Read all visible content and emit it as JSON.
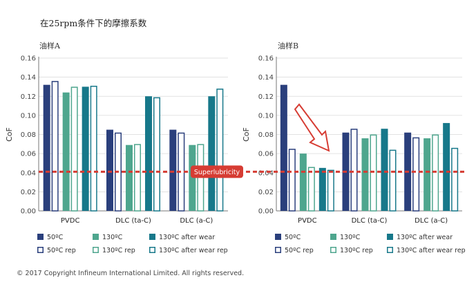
{
  "figure": {
    "title": "在25rpm条件下的摩擦系数",
    "copyright": "© 2017 Copyright Infineum International Limited. All rights reserved.",
    "superlubricity_label": "Superlubricity",
    "superlubricity_level": 0.041
  },
  "colors": {
    "50C": "#2a3f7c",
    "130C": "#4ea68e",
    "130C_after_wear": "#17788a",
    "superlubricity_line": "#d63c33",
    "arrow": "#d63c33"
  },
  "chart_data": [
    {
      "type": "bar",
      "title": "油样A",
      "ylabel": "CoF",
      "ylim": [
        0,
        0.16
      ],
      "yticks": [
        "0.00",
        "0.02",
        "0.04",
        "0.06",
        "0.08",
        "0.10",
        "0.12",
        "0.14",
        "0.16"
      ],
      "grid": true,
      "categories": [
        "PVDC",
        "DLC (ta-C)",
        "DLC (a-C)"
      ],
      "series": [
        {
          "name": "50ºC",
          "style": "filled",
          "color_key": "50C",
          "values": [
            0.132,
            0.085,
            0.085
          ]
        },
        {
          "name": "50ºC rep",
          "style": "outline",
          "color_key": "50C",
          "values": [
            0.136,
            0.082,
            0.082
          ]
        },
        {
          "name": "130ºC",
          "style": "filled",
          "color_key": "130C",
          "values": [
            0.124,
            0.069,
            0.069
          ]
        },
        {
          "name": "130ºC rep",
          "style": "outline",
          "color_key": "130C",
          "values": [
            0.13,
            0.07,
            0.07
          ]
        },
        {
          "name": "130ºC after wear",
          "style": "filled",
          "color_key": "130C_after_wear",
          "values": [
            0.13,
            0.12,
            0.12
          ]
        },
        {
          "name": "130ºC after wear rep",
          "style": "outline",
          "color_key": "130C_after_wear",
          "values": [
            0.131,
            0.119,
            0.128
          ]
        }
      ]
    },
    {
      "type": "bar",
      "title": "油样B",
      "ylabel": "CoF",
      "ylim": [
        0,
        0.16
      ],
      "yticks": [
        "0.00",
        "0.02",
        "0.04",
        "0.06",
        "0.08",
        "0.10",
        "0.12",
        "0.14",
        "0.16"
      ],
      "grid": true,
      "categories": [
        "PVDC",
        "DLC (ta-C)",
        "DLC (a-C)"
      ],
      "series": [
        {
          "name": "50ºC",
          "style": "filled",
          "color_key": "50C",
          "values": [
            0.132,
            0.082,
            0.082
          ]
        },
        {
          "name": "50ºC rep",
          "style": "outline",
          "color_key": "50C",
          "values": [
            0.065,
            0.086,
            0.077
          ]
        },
        {
          "name": "130ºC",
          "style": "filled",
          "color_key": "130C",
          "values": [
            0.06,
            0.076,
            0.076
          ]
        },
        {
          "name": "130ºC rep",
          "style": "outline",
          "color_key": "130C",
          "values": [
            0.046,
            0.08,
            0.08
          ]
        },
        {
          "name": "130ºC after wear",
          "style": "filled",
          "color_key": "130C_after_wear",
          "values": [
            0.045,
            0.086,
            0.092
          ]
        },
        {
          "name": "130ºC after wear rep",
          "style": "outline",
          "color_key": "130C_after_wear",
          "values": [
            0.043,
            0.064,
            0.066
          ]
        }
      ]
    }
  ]
}
